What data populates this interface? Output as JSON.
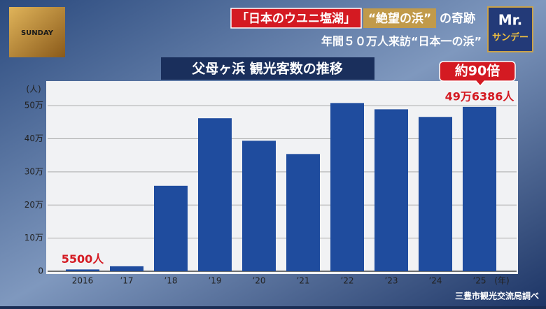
{
  "chart_data": {
    "type": "bar",
    "headline": [
      "「日本のウユニ塩湖」",
      "“絶望の浜”",
      "の奇跡"
    ],
    "subtitle": "年間５０万人来訪“日本一の浜”",
    "title": "父母ヶ浜 観光客数の推移",
    "y_unit": "(人)",
    "x_unit": "(年)",
    "annotation": "約90倍",
    "source": "三豊市観光交流局調べ",
    "logo_left": "SUNDAY",
    "logo_right": [
      "Mr.",
      "サンデー"
    ],
    "categories": [
      "2016",
      "’17",
      "’18",
      "’19",
      "’20",
      "’21",
      "’22",
      "’23",
      "’24",
      "’25"
    ],
    "values": [
      5500,
      15000,
      258000,
      462000,
      394000,
      354000,
      508000,
      489000,
      466000,
      496386
    ],
    "value_labels": [
      "5500人",
      null,
      null,
      null,
      null,
      null,
      null,
      null,
      null,
      "49万6386人"
    ],
    "color": "#1f4c9e",
    "ylim": [
      0,
      570000
    ],
    "yticks": [
      0,
      {
        "value": 100000,
        "label": "10万"
      },
      {
        "value": 200000,
        "label": "20万"
      },
      {
        "value": 300000,
        "label": "30万"
      },
      {
        "value": 400000,
        "label": "40万"
      },
      {
        "value": 500000,
        "label": "50万"
      }
    ],
    "grid": true
  }
}
